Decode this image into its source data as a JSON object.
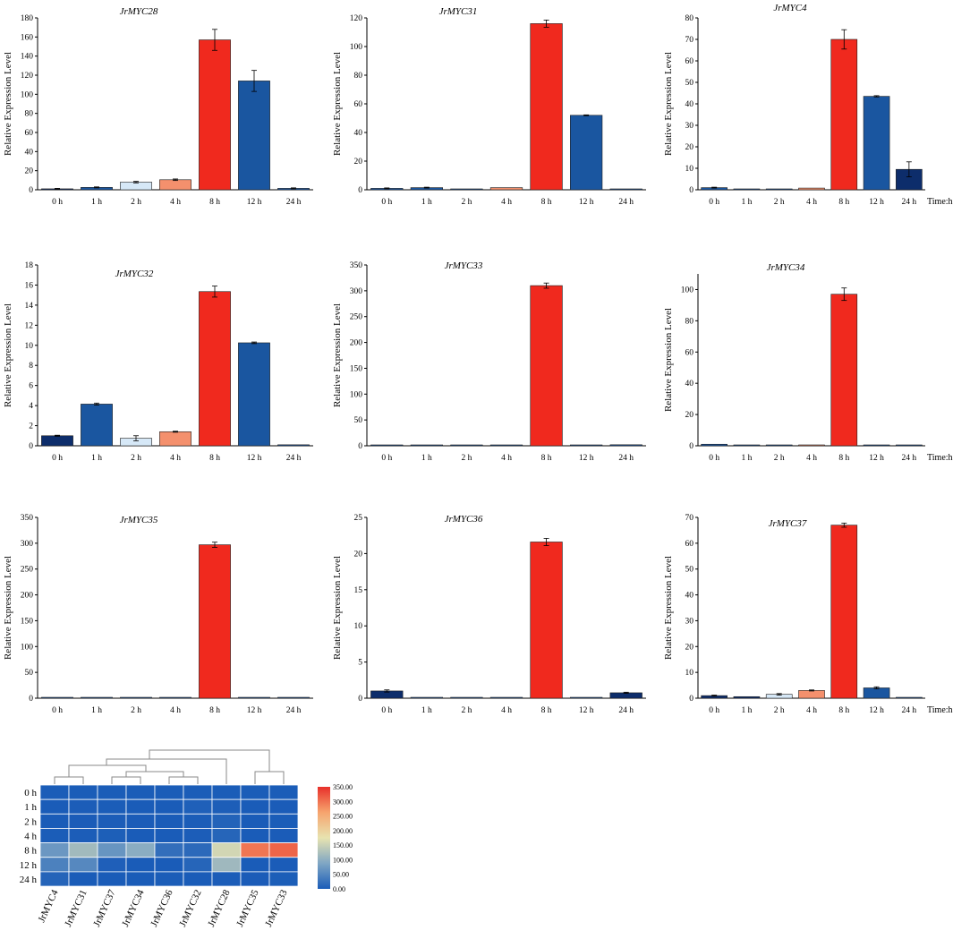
{
  "figure_caption": "",
  "chart_data": [
    {
      "type": "bar",
      "title": "JrMYC28",
      "ylabel": "Relative Expression Level",
      "xlabel": "",
      "categories": [
        "0 h",
        "1 h",
        "2 h",
        "4 h",
        "8 h",
        "12 h",
        "24 h"
      ],
      "values": [
        1,
        2.5,
        8,
        10.5,
        157,
        114,
        1.5
      ],
      "errors": [
        0.5,
        0.5,
        0.8,
        0.8,
        11,
        11,
        0.5
      ],
      "colors": [
        "#0d2d6b",
        "#1a56a0",
        "#d6e8f7",
        "#f4906d",
        "#f0291e",
        "#1a56a0",
        "#1a56a0"
      ],
      "ylim": [
        0,
        180
      ],
      "yticks": [
        0,
        20,
        40,
        60,
        80,
        100,
        120,
        140,
        160,
        180
      ],
      "time_unit": ""
    },
    {
      "type": "bar",
      "title": "JrMYC31",
      "ylabel": "Relative Expression Level",
      "xlabel": "",
      "categories": [
        "0 h",
        "1 h",
        "2 h",
        "4 h",
        "8 h",
        "12 h",
        "24 h"
      ],
      "values": [
        1,
        1.5,
        0.5,
        1.5,
        116,
        52,
        0.3
      ],
      "errors": [
        0.3,
        0.3,
        0.2,
        0.2,
        2.5,
        0.3,
        0.1
      ],
      "colors": [
        "#1a56a0",
        "#1a56a0",
        "#1a56a0",
        "#f4906d",
        "#f0291e",
        "#1a56a0",
        "#1a56a0"
      ],
      "ylim": [
        0,
        120
      ],
      "yticks": [
        0,
        20,
        40,
        60,
        80,
        100,
        120
      ],
      "time_unit": ""
    },
    {
      "type": "bar",
      "title": "JrMYC4",
      "ylabel": "Relative Expression Level",
      "xlabel": "",
      "categories": [
        "0 h",
        "1 h",
        "2 h",
        "4 h",
        "8 h",
        "12 h",
        "24 h"
      ],
      "values": [
        1,
        0.1,
        0.3,
        0.8,
        70,
        43.5,
        9.5
      ],
      "errors": [
        0.2,
        0.05,
        0.1,
        0.1,
        4.5,
        0.3,
        3.5
      ],
      "colors": [
        "#1a56a0",
        "#1a56a0",
        "#1a56a0",
        "#f4906d",
        "#f0291e",
        "#1a56a0",
        "#0d2d6b"
      ],
      "ylim": [
        0,
        80
      ],
      "yticks": [
        0,
        10,
        20,
        30,
        40,
        50,
        60,
        70,
        80
      ],
      "time_unit": "Time:h"
    },
    {
      "type": "bar",
      "title": "JrMYC32",
      "ylabel": "Relative Expression Level",
      "xlabel": "",
      "categories": [
        "0 h",
        "1 h",
        "2 h",
        "4 h",
        "8 h",
        "12 h",
        "24 h"
      ],
      "values": [
        1,
        4.15,
        0.75,
        1.4,
        15.35,
        10.25,
        0.1
      ],
      "errors": [
        0.05,
        0.1,
        0.25,
        0.05,
        0.55,
        0.08,
        0.02
      ],
      "colors": [
        "#0d2d6b",
        "#1a56a0",
        "#d6e8f7",
        "#f4906d",
        "#f0291e",
        "#1a56a0",
        "#1a56a0"
      ],
      "ylim": [
        0,
        18
      ],
      "yticks": [
        0,
        2,
        4,
        6,
        8,
        10,
        12,
        14,
        16,
        18
      ],
      "time_unit": ""
    },
    {
      "type": "bar",
      "title": "JrMYC33",
      "ylabel": "Relative Expression Level",
      "xlabel": "",
      "categories": [
        "0 h",
        "1 h",
        "2 h",
        "4 h",
        "8 h",
        "12 h",
        "24 h"
      ],
      "values": [
        1,
        0.5,
        0.8,
        0.5,
        310,
        0.5,
        2
      ],
      "errors": [
        0.3,
        0.2,
        0.2,
        0.2,
        5,
        0.2,
        0.5
      ],
      "colors": [
        "#1a56a0",
        "#1a56a0",
        "#1a56a0",
        "#1a56a0",
        "#f0291e",
        "#1a56a0",
        "#1a56a0"
      ],
      "ylim": [
        0,
        350
      ],
      "yticks": [
        0,
        50,
        100,
        150,
        200,
        250,
        300,
        350
      ],
      "time_unit": ""
    },
    {
      "type": "bar",
      "title": "JrMYC34",
      "ylabel": "Relative Expression Level",
      "xlabel": "",
      "categories": [
        "0 h",
        "1 h",
        "2 h",
        "4 h",
        "8 h",
        "12 h",
        "24 h"
      ],
      "values": [
        1,
        0.3,
        0.5,
        0.3,
        97,
        0.2,
        0.3
      ],
      "errors": [
        0.2,
        0.1,
        0.1,
        0.1,
        4,
        0.1,
        0.1
      ],
      "colors": [
        "#1a56a0",
        "#1a56a0",
        "#1a56a0",
        "#f4906d",
        "#f0291e",
        "#1a56a0",
        "#1a56a0"
      ],
      "ylim": [
        0,
        110
      ],
      "yticks": [
        0,
        20,
        40,
        60,
        80,
        100
      ],
      "time_unit": "Time:h"
    },
    {
      "type": "bar",
      "title": "JrMYC35",
      "ylabel": "Relative Expression Level",
      "xlabel": "",
      "categories": [
        "0 h",
        "1 h",
        "2 h",
        "4 h",
        "8 h",
        "12 h",
        "24 h"
      ],
      "values": [
        1,
        0.3,
        0.3,
        0.3,
        297,
        0.3,
        0.5
      ],
      "errors": [
        0.3,
        0.1,
        0.1,
        0.1,
        5,
        0.1,
        0.1
      ],
      "colors": [
        "#1a56a0",
        "#1a56a0",
        "#1a56a0",
        "#1a56a0",
        "#f0291e",
        "#1a56a0",
        "#1a56a0"
      ],
      "ylim": [
        0,
        350
      ],
      "yticks": [
        0,
        50,
        100,
        150,
        200,
        250,
        300,
        350
      ],
      "time_unit": ""
    },
    {
      "type": "bar",
      "title": "JrMYC36",
      "ylabel": "Relative Expression Level",
      "xlabel": "",
      "categories": [
        "0 h",
        "1 h",
        "2 h",
        "4 h",
        "8 h",
        "12 h",
        "24 h"
      ],
      "values": [
        1,
        0.05,
        0.1,
        0.1,
        21.6,
        0.1,
        0.75
      ],
      "errors": [
        0.15,
        0.02,
        0.03,
        0.03,
        0.5,
        0.02,
        0.08
      ],
      "colors": [
        "#0d2d6b",
        "#1a56a0",
        "#1a56a0",
        "#1a56a0",
        "#f0291e",
        "#1a56a0",
        "#0d2d6b"
      ],
      "ylim": [
        0,
        25
      ],
      "yticks": [
        0,
        5,
        10,
        15,
        20,
        25
      ],
      "time_unit": ""
    },
    {
      "type": "bar",
      "title": "JrMYC37",
      "ylabel": "Relative Expression Level",
      "xlabel": "",
      "categories": [
        "0 h",
        "1 h",
        "2 h",
        "4 h",
        "8 h",
        "12 h",
        "24 h"
      ],
      "values": [
        1,
        0.6,
        1.5,
        3,
        67,
        4,
        0.2
      ],
      "errors": [
        0.2,
        0.1,
        0.3,
        0.2,
        0.8,
        0.4,
        0.05
      ],
      "colors": [
        "#0d2d6b",
        "#0d2d6b",
        "#d6e8f7",
        "#f4906d",
        "#f0291e",
        "#1a56a0",
        "#1a56a0"
      ],
      "ylim": [
        0,
        70
      ],
      "yticks": [
        0,
        10,
        20,
        30,
        40,
        50,
        60,
        70
      ],
      "time_unit": "Time:h"
    },
    {
      "type": "heatmap",
      "title": "",
      "rows": [
        "0 h",
        "1 h",
        "2 h",
        "4 h",
        "8 h",
        "12 h",
        "24 h"
      ],
      "columns": [
        "JrMYC4",
        "JrMYC31",
        "JrMYC37",
        "JrMYC34",
        "JrMYC36",
        "JrMYC32",
        "JrMYC28",
        "JrMYC35",
        "JrMYC33"
      ],
      "values": [
        [
          1,
          1,
          1,
          1,
          1,
          1,
          1,
          1,
          1
        ],
        [
          0.1,
          1.5,
          0.6,
          0.3,
          0.05,
          4.15,
          2.5,
          0.3,
          0.5
        ],
        [
          0.3,
          0.5,
          1.5,
          0.5,
          0.1,
          0.75,
          8,
          0.3,
          0.8
        ],
        [
          0.8,
          1.5,
          3,
          0.3,
          0.1,
          1.4,
          10.5,
          0.3,
          0.5
        ],
        [
          70,
          116,
          67,
          97,
          21.6,
          15.35,
          157,
          297,
          310
        ],
        [
          43.5,
          52,
          4,
          0.2,
          0.1,
          10.25,
          114,
          0.3,
          0.5
        ],
        [
          9.5,
          0.3,
          0.2,
          0.3,
          0.75,
          0.1,
          1.5,
          0.5,
          2
        ]
      ],
      "colorbar": {
        "min": 0,
        "max": 350,
        "ticks": [
          "0.00",
          "50.00",
          "100.00",
          "150.00",
          "200.00",
          "250.00",
          "300.00",
          "350.00"
        ],
        "colors": [
          "#1a5cb8",
          "#7fa6c4",
          "#e8e3b0",
          "#f6a46e",
          "#e8302a"
        ]
      }
    }
  ]
}
